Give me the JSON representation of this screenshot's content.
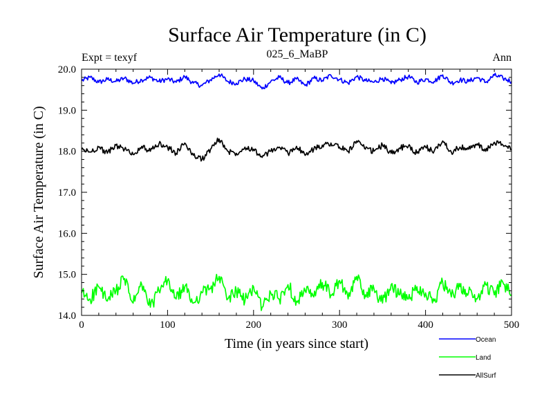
{
  "chart_data": {
    "type": "line",
    "title": "Surface Air Temperature (in C)",
    "left_note": "Expt = texyf",
    "center_note": "025_6_MaBP",
    "right_note": "Ann",
    "xlabel": "Time (in years since start)",
    "ylabel": "Surface Air Temperature (in C)",
    "xlim": [
      0,
      500
    ],
    "ylim": [
      14.0,
      20.0
    ],
    "xticks": [
      0,
      100,
      200,
      300,
      400,
      500
    ],
    "xtick_labels": [
      "0",
      "100",
      "200",
      "300",
      "400",
      "500"
    ],
    "yticks": [
      14.0,
      15.0,
      16.0,
      17.0,
      18.0,
      19.0,
      20.0
    ],
    "ytick_labels": [
      "14.0",
      "15.0",
      "16.0",
      "17.0",
      "18.0",
      "19.0",
      "20.0"
    ],
    "grid": false,
    "legend_position": "bottom-right, below plot",
    "x": [
      0,
      10,
      20,
      30,
      40,
      50,
      60,
      70,
      80,
      90,
      100,
      110,
      120,
      130,
      140,
      150,
      160,
      170,
      180,
      190,
      200,
      210,
      220,
      230,
      240,
      250,
      260,
      270,
      280,
      290,
      300,
      310,
      320,
      330,
      340,
      350,
      360,
      370,
      380,
      390,
      400,
      410,
      420,
      430,
      440,
      450,
      460,
      470,
      480,
      490,
      500
    ],
    "series": [
      {
        "name": "Ocean",
        "color": "#0000ff",
        "values": [
          19.72,
          19.8,
          19.68,
          19.75,
          19.7,
          19.78,
          19.66,
          19.74,
          19.8,
          19.7,
          19.76,
          19.68,
          19.82,
          19.66,
          19.6,
          19.74,
          19.88,
          19.7,
          19.66,
          19.76,
          19.72,
          19.52,
          19.7,
          19.8,
          19.66,
          19.76,
          19.6,
          19.78,
          19.72,
          19.85,
          19.75,
          19.66,
          19.82,
          19.72,
          19.68,
          19.78,
          19.65,
          19.74,
          19.82,
          19.68,
          19.76,
          19.7,
          19.86,
          19.66,
          19.74,
          19.7,
          19.8,
          19.68,
          19.85,
          19.78,
          19.7
        ]
      },
      {
        "name": "Land",
        "color": "#00ff00",
        "values": [
          14.55,
          14.4,
          14.7,
          14.35,
          14.6,
          14.9,
          14.3,
          14.75,
          14.2,
          14.6,
          14.85,
          14.4,
          14.7,
          14.3,
          14.55,
          14.65,
          14.95,
          14.4,
          14.6,
          14.35,
          14.7,
          14.2,
          14.55,
          14.4,
          14.75,
          14.35,
          14.6,
          14.45,
          14.8,
          14.5,
          14.85,
          14.4,
          14.95,
          14.5,
          14.65,
          14.3,
          14.75,
          14.5,
          14.4,
          14.7,
          14.55,
          14.35,
          14.8,
          14.45,
          14.7,
          14.55,
          14.4,
          14.75,
          14.5,
          14.8,
          14.5
        ]
      },
      {
        "name": "AllSurf",
        "color": "#000000",
        "values": [
          18.05,
          17.98,
          18.1,
          17.95,
          18.15,
          18.05,
          17.92,
          18.12,
          18.0,
          18.18,
          18.1,
          17.95,
          18.2,
          17.9,
          17.8,
          18.05,
          18.3,
          18.0,
          17.95,
          18.1,
          18.05,
          17.85,
          18.0,
          18.1,
          17.95,
          18.12,
          17.9,
          18.05,
          18.15,
          18.2,
          18.1,
          18.0,
          18.25,
          18.05,
          18.0,
          18.15,
          17.95,
          18.08,
          18.12,
          17.95,
          18.1,
          18.0,
          18.25,
          17.98,
          18.1,
          18.05,
          18.18,
          18.0,
          18.22,
          18.15,
          18.05
        ]
      }
    ]
  }
}
